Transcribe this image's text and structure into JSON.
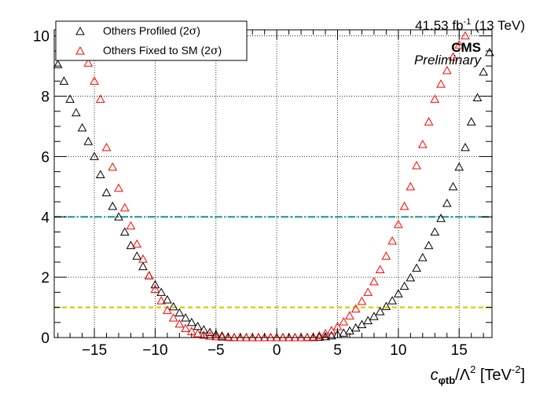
{
  "header": {
    "lumi_prefix": "41.53 fb",
    "lumi_exp": "-1",
    "lumi_suffix": " (13 TeV)",
    "experiment": "CMS",
    "status": "Preliminary"
  },
  "legend": {
    "entries": [
      {
        "prefix": "Others Profiled (2",
        "sigma": "σ",
        "suffix": ")",
        "color": "#000000"
      },
      {
        "prefix": "Others Fixed to SM (2",
        "sigma": "σ",
        "suffix": ")",
        "color": "#ff0000"
      }
    ]
  },
  "axis": {
    "x_label_c": "c",
    "x_label_sub": "φtb",
    "x_label_mid": "/Λ",
    "x_label_sup": "2",
    "x_label_unit": " [TeV",
    "x_label_unit_sup": "-2",
    "x_label_end": "]"
  },
  "chart_data": {
    "type": "scatter",
    "title": "",
    "xlabel": "c_φtb/Λ^2 [TeV^-2]",
    "ylabel": "",
    "xlim": [
      -18.3,
      17.7
    ],
    "ylim": [
      0,
      10.2
    ],
    "x_ticks": [
      -15,
      -10,
      -5,
      0,
      5,
      10,
      15
    ],
    "y_ticks": [
      0,
      2,
      4,
      6,
      8,
      10
    ],
    "grid": true,
    "legend_position": "top-left",
    "marker": "open-triangle",
    "reference_lines": [
      {
        "y": 4,
        "color": "#2a9d9d",
        "style": "dash-dot",
        "label": ""
      },
      {
        "y": 1,
        "color": "#cccc00",
        "style": "dashed",
        "label": ""
      }
    ],
    "series": [
      {
        "name": "Others Profiled (2σ)",
        "color": "#000000",
        "x": [
          -18.0,
          -17.5,
          -17.0,
          -16.5,
          -16.0,
          -15.5,
          -15.0,
          -14.5,
          -14.0,
          -13.5,
          -13.0,
          -12.5,
          -12.0,
          -11.5,
          -11.0,
          -10.5,
          -10.0,
          -9.5,
          -9.0,
          -8.5,
          -8.0,
          -7.5,
          -7.0,
          -6.5,
          -6.0,
          -5.5,
          -5.0,
          -4.5,
          -4.0,
          -3.5,
          -3.0,
          -2.5,
          -2.0,
          -1.5,
          -1.0,
          -0.5,
          0.0,
          0.5,
          1.0,
          1.5,
          2.0,
          2.5,
          3.0,
          3.5,
          4.0,
          4.5,
          5.0,
          5.5,
          6.0,
          6.5,
          7.0,
          7.5,
          8.0,
          8.5,
          9.0,
          9.5,
          10.0,
          10.5,
          11.0,
          11.5,
          12.0,
          12.5,
          13.0,
          13.5,
          14.0,
          14.5,
          15.0,
          15.5,
          16.0,
          16.5,
          17.0,
          17.5
        ],
        "y": [
          9.05,
          8.5,
          7.9,
          7.45,
          6.95,
          6.5,
          6.0,
          5.4,
          4.8,
          4.35,
          4.0,
          3.5,
          3.05,
          2.7,
          2.35,
          2.05,
          1.75,
          1.5,
          1.25,
          1.02,
          0.82,
          0.65,
          0.5,
          0.37,
          0.26,
          0.17,
          0.1,
          0.05,
          0.02,
          0.004,
          0.0,
          0.0,
          0.0,
          0.0,
          0.0,
          0.0,
          0.0,
          0.0,
          0.0,
          0.0,
          0.0,
          0.0,
          0.003,
          0.01,
          0.03,
          0.06,
          0.1,
          0.15,
          0.22,
          0.32,
          0.43,
          0.56,
          0.7,
          0.86,
          1.03,
          1.22,
          1.45,
          1.7,
          1.98,
          2.3,
          2.65,
          3.05,
          3.5,
          3.95,
          4.45,
          5.0,
          5.65,
          6.3,
          7.15,
          7.95,
          8.8,
          9.45
        ]
      },
      {
        "name": "Others Fixed to SM (2σ)",
        "color": "#ff0000",
        "x": [
          -15.5,
          -15.0,
          -14.5,
          -14.0,
          -13.5,
          -13.0,
          -12.5,
          -12.0,
          -11.5,
          -11.0,
          -10.5,
          -10.0,
          -9.5,
          -9.0,
          -8.5,
          -8.0,
          -7.5,
          -7.0,
          -6.5,
          -6.0,
          -5.5,
          -5.0,
          -4.5,
          -4.0,
          -3.5,
          -3.0,
          -2.5,
          -2.0,
          -1.5,
          -1.0,
          -0.5,
          0.0,
          0.5,
          1.0,
          1.5,
          2.0,
          2.5,
          3.0,
          3.5,
          4.0,
          4.5,
          5.0,
          5.5,
          6.0,
          6.5,
          7.0,
          7.5,
          8.0,
          8.5,
          9.0,
          9.5,
          10.0,
          10.5,
          11.0,
          11.5,
          12.0,
          12.5,
          13.0,
          13.5,
          14.0,
          14.5,
          15.0,
          15.5
        ],
        "y": [
          9.1,
          8.5,
          7.9,
          6.3,
          5.65,
          4.95,
          4.3,
          3.7,
          3.1,
          2.6,
          2.05,
          1.6,
          1.22,
          0.9,
          0.65,
          0.45,
          0.3,
          0.2,
          0.13,
          0.08,
          0.05,
          0.03,
          0.015,
          0.005,
          0.0,
          0.0,
          0.0,
          0.0,
          0.0,
          0.0,
          0.0,
          0.0,
          0.0,
          0.0,
          0.0,
          0.0,
          0.005,
          0.02,
          0.06,
          0.13,
          0.23,
          0.36,
          0.52,
          0.72,
          0.95,
          1.2,
          1.5,
          1.85,
          2.25,
          2.7,
          3.2,
          3.75,
          4.35,
          5.0,
          5.7,
          6.4,
          7.15,
          7.9,
          8.4,
          8.85,
          9.3,
          9.7,
          10.0
        ]
      }
    ]
  }
}
